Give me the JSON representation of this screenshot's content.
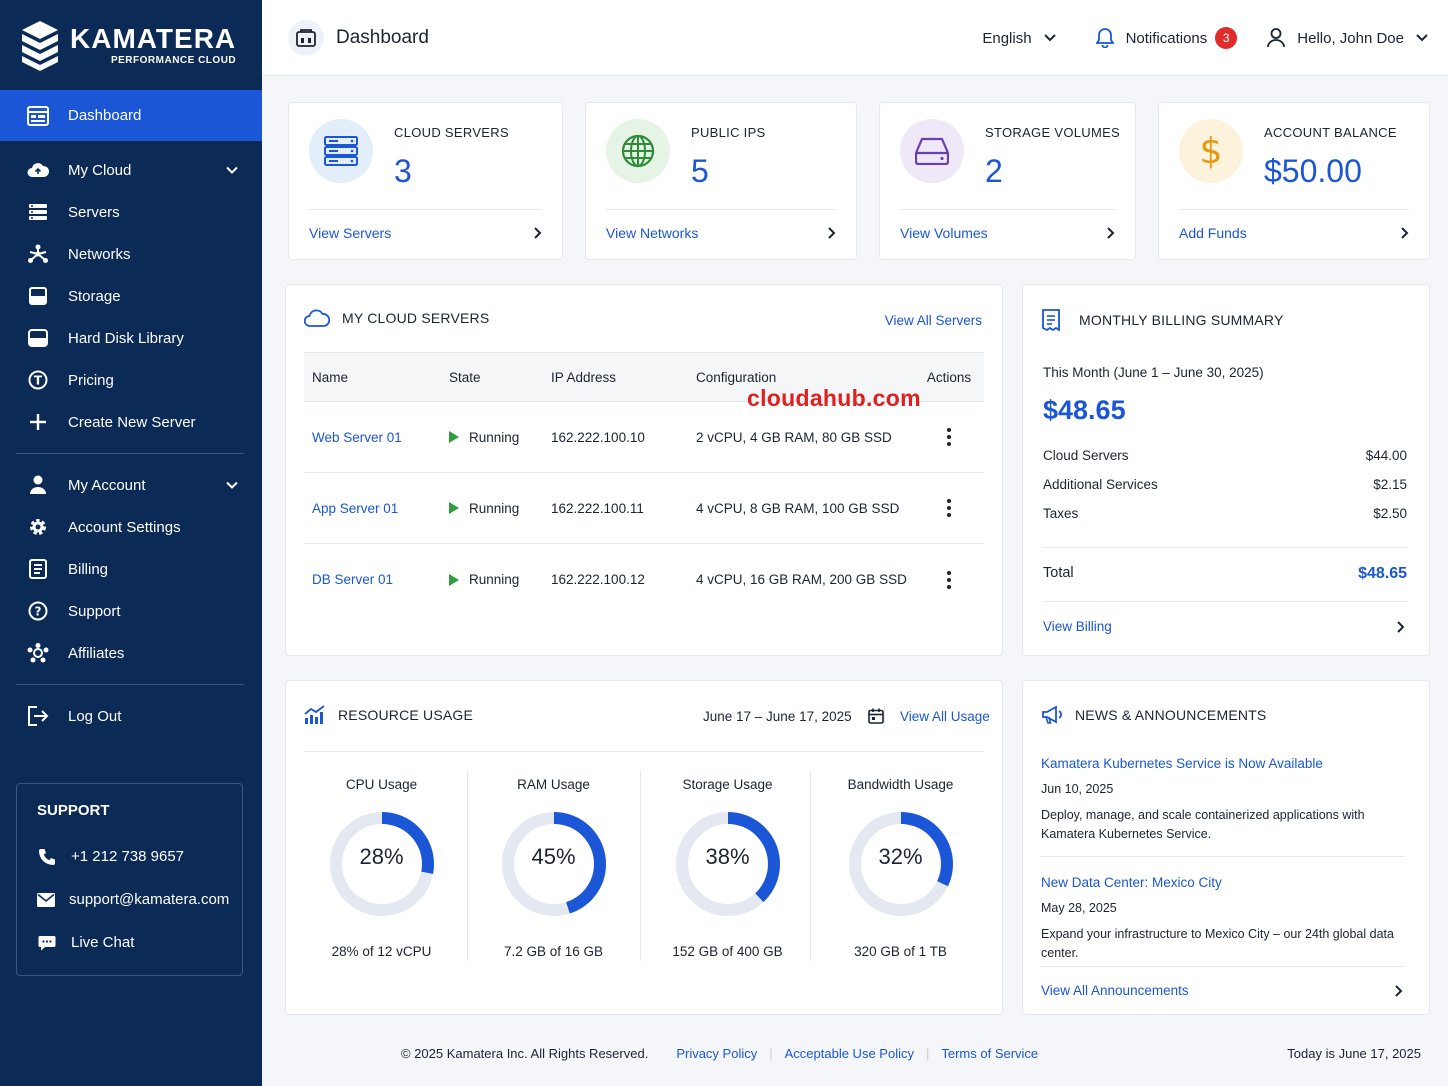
{
  "brand": {
    "name": "KAMATERA",
    "tagline": "PERFORMANCE CLOUD"
  },
  "sidebar": {
    "items": [
      {
        "label": "Dashboard",
        "icon": "dashboard-icon",
        "active": true
      },
      {
        "label": "My Cloud",
        "icon": "cloud-icon",
        "expandable": true
      },
      {
        "label": "Servers",
        "icon": "server-icon"
      },
      {
        "label": "Networks",
        "icon": "network-icon"
      },
      {
        "label": "Storage",
        "icon": "storage-icon"
      },
      {
        "label": "Hard Disk Library",
        "icon": "hard-disk-icon"
      },
      {
        "label": "Pricing",
        "icon": "pricing-icon"
      },
      {
        "label": "Create New Server",
        "icon": "plus-icon"
      }
    ],
    "account_items": [
      {
        "label": "My Account",
        "icon": "user-icon",
        "expandable": true
      },
      {
        "label": "Account Settings",
        "icon": "gear-icon"
      },
      {
        "label": "Billing",
        "icon": "billing-icon"
      },
      {
        "label": "Support",
        "icon": "help-icon"
      },
      {
        "label": "Affiliates",
        "icon": "affiliates-icon"
      }
    ],
    "logout": "Log Out",
    "support": {
      "title": "SUPPORT",
      "phone": "+1 212 738 9657",
      "email": "support@kamatera.com",
      "chat": "Live Chat"
    }
  },
  "header": {
    "title": "Dashboard",
    "language": "English",
    "notifications_label": "Notifications",
    "notifications_count": "3",
    "user_greeting": "Hello, John Doe"
  },
  "stats": [
    {
      "label": "CLOUD SERVERS",
      "value": "3",
      "link": "View Servers",
      "icon": "server-stack-icon",
      "bg": "#e3eefb"
    },
    {
      "label": "PUBLIC IPS",
      "value": "5",
      "link": "View Networks",
      "icon": "globe-icon",
      "bg": "#e5f4e4"
    },
    {
      "label": "STORAGE VOLUMES",
      "value": "2",
      "link": "View Volumes",
      "icon": "disk-drive-icon",
      "bg": "#eee8f7"
    },
    {
      "label": "ACCOUNT BALANCE",
      "value": "$50.00",
      "link": "Add Funds",
      "icon": "dollar-icon",
      "bg": "#fdf2dc"
    }
  ],
  "servers_panel": {
    "title": "MY CLOUD SERVERS",
    "view_all": "View All Servers",
    "columns": [
      "Name",
      "State",
      "IP Address",
      "Configuration",
      "Actions"
    ],
    "rows": [
      {
        "name": "Web Server 01",
        "state": "Running",
        "ip": "162.222.100.10",
        "config": "2 vCPU, 4 GB RAM, 80 GB SSD"
      },
      {
        "name": "App Server 01",
        "state": "Running",
        "ip": "162.222.100.11",
        "config": "4 vCPU, 8 GB RAM, 100 GB SSD"
      },
      {
        "name": "DB Server 01",
        "state": "Running",
        "ip": "162.222.100.12",
        "config": "4 vCPU, 16 GB RAM, 200 GB SSD"
      }
    ]
  },
  "watermark": "cloudahub.com",
  "billing": {
    "title": "MONTHLY BILLING SUMMARY",
    "period": "This Month (June 1 – June 30, 2025)",
    "amount": "$48.65",
    "lines": [
      {
        "label": "Cloud Servers",
        "value": "$44.00"
      },
      {
        "label": "Additional Services",
        "value": "$2.15"
      },
      {
        "label": "Taxes",
        "value": "$2.50"
      }
    ],
    "total_label": "Total",
    "total_value": "$48.65",
    "link": "View Billing"
  },
  "usage": {
    "title": "RESOURCE USAGE",
    "date_range": "June 17 – June 17, 2025",
    "view_all": "View All Usage",
    "items": [
      {
        "title": "CPU Usage",
        "percent": 28,
        "percent_label": "28%",
        "detail": "28% of 12 vCPU"
      },
      {
        "title": "RAM Usage",
        "percent": 45,
        "percent_label": "45%",
        "detail": "7.2 GB of 16 GB"
      },
      {
        "title": "Storage Usage",
        "percent": 38,
        "percent_label": "38%",
        "detail": "152 GB of 400 GB"
      },
      {
        "title": "Bandwidth Usage",
        "percent": 32,
        "percent_label": "32%",
        "detail": "320 GB of 1 TB"
      }
    ]
  },
  "news": {
    "title": "NEWS & ANNOUNCEMENTS",
    "items": [
      {
        "title": "Kamatera Kubernetes Service is Now Available",
        "date": "Jun 10, 2025",
        "desc": "Deploy, manage, and scale containerized applications with Kamatera Kubernetes Service."
      },
      {
        "title": "New Data Center: Mexico City",
        "date": "May 28, 2025",
        "desc": "Expand your infrastructure to Mexico City – our 24th global data center."
      }
    ],
    "view_all": "View All Announcements"
  },
  "footer": {
    "copyright": "© 2025 Kamatera Inc. All Rights Reserved.",
    "links": [
      "Privacy Policy",
      "Acceptable Use Policy",
      "Terms of Service"
    ],
    "today": "Today is June 17, 2025"
  },
  "colors": {
    "sidebar": "#0b2a55",
    "accent": "#1a56d6",
    "running": "#2e9d3e",
    "badge": "#e02b2b"
  }
}
